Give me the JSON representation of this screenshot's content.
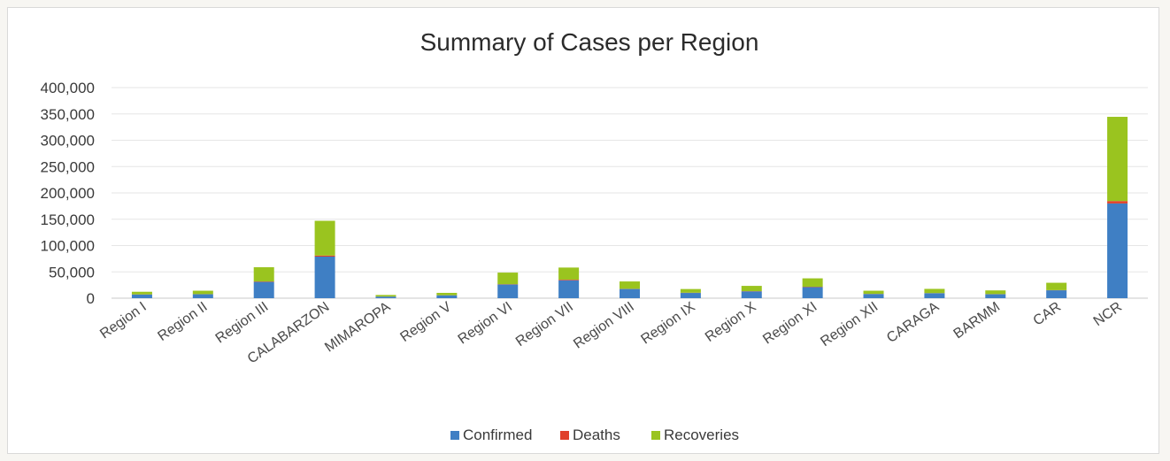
{
  "chart_data": {
    "type": "bar",
    "stacked": true,
    "title": "Summary of Cases per Region",
    "xlabel": "",
    "ylabel": "",
    "ylim": [
      0,
      400000
    ],
    "yticks": [
      "0",
      "50,000",
      "100,000",
      "150,000",
      "200,000",
      "250,000",
      "300,000",
      "350,000",
      "400,000"
    ],
    "grid": true,
    "legend_position": "bottom",
    "categories": [
      "Region I",
      "Region II",
      "Region III",
      "CALABARZON",
      "MIMAROPA",
      "Region V",
      "Region VI",
      "Region VII",
      "Region VIII",
      "Region IX",
      "Region X",
      "Region XI",
      "Region XII",
      "CARAGA",
      "BARMM",
      "CAR",
      "NCR"
    ],
    "series": [
      {
        "name": "Confirmed",
        "color": "#3f7fc4",
        "values": [
          7000,
          7500,
          31000,
          79000,
          3000,
          5500,
          26000,
          34000,
          17500,
          10000,
          13000,
          21000,
          8000,
          9500,
          7500,
          15000,
          180000
        ]
      },
      {
        "name": "Deaths",
        "color": "#e0402a",
        "values": [
          200,
          200,
          800,
          2000,
          100,
          100,
          600,
          1200,
          300,
          400,
          400,
          700,
          200,
          200,
          300,
          300,
          4500
        ]
      },
      {
        "name": "Recoveries",
        "color": "#9ac41f",
        "values": [
          5000,
          6500,
          27000,
          66000,
          3000,
          4500,
          22000,
          23000,
          14000,
          7000,
          10000,
          16000,
          6000,
          8000,
          7000,
          14000,
          160000
        ]
      }
    ]
  }
}
